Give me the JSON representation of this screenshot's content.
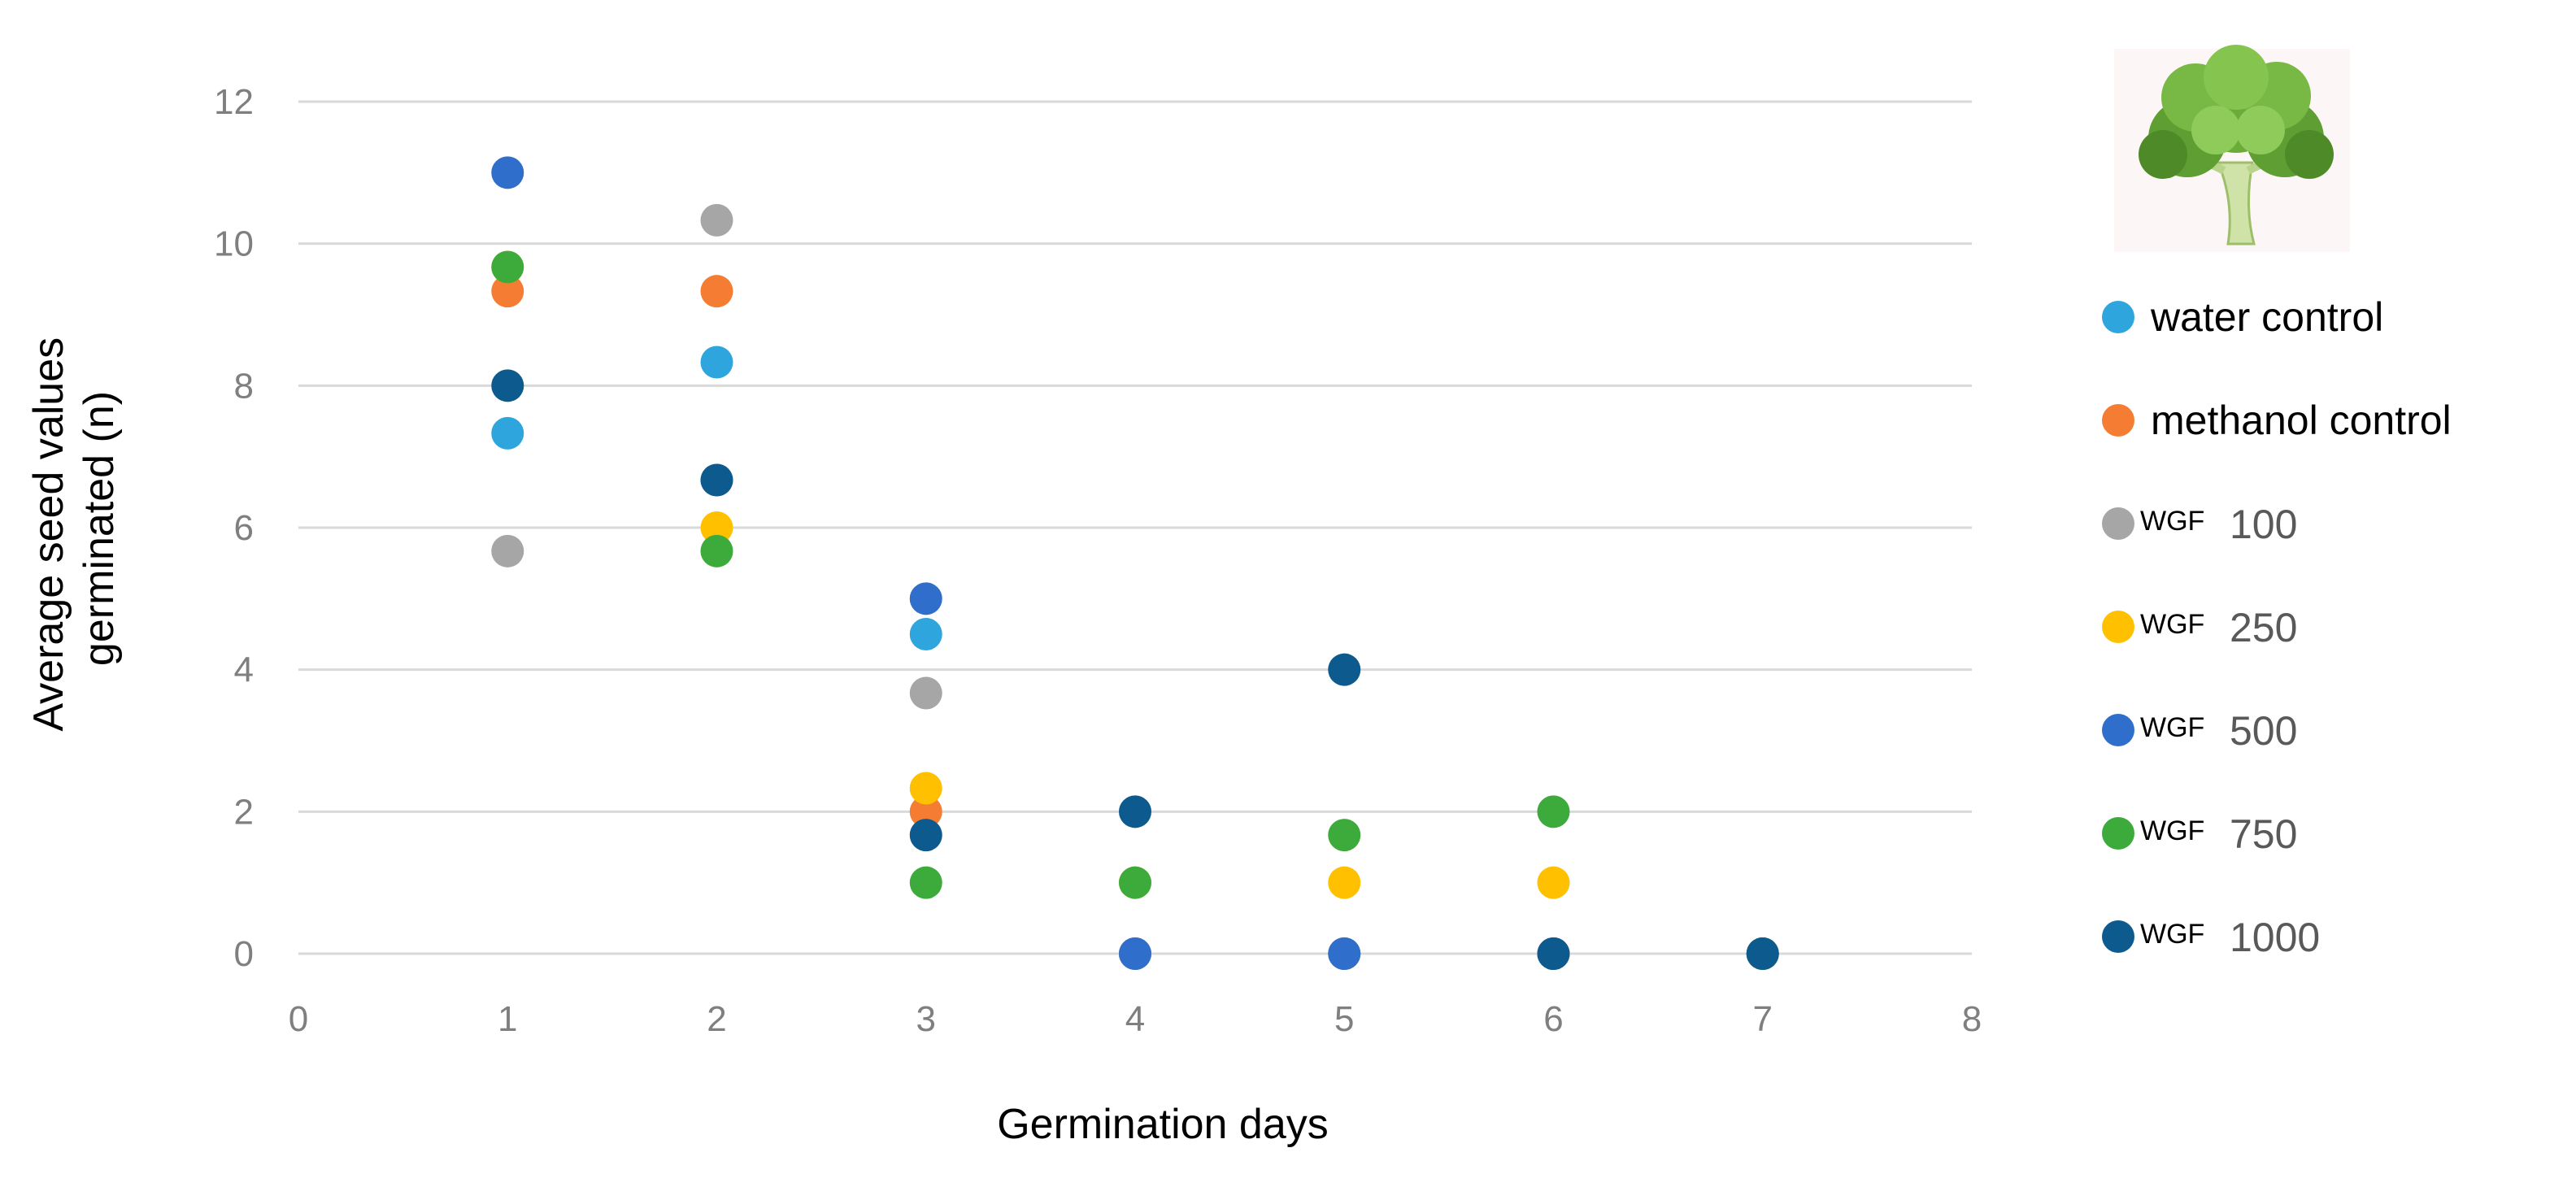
{
  "chart_data": {
    "type": "scatter",
    "xlabel": "Germination days",
    "ylabel_lines": [
      "Average seed values",
      "germinated (n)"
    ],
    "xlim": [
      0,
      8
    ],
    "ylim": [
      0,
      12
    ],
    "xticks": [
      0,
      1,
      2,
      3,
      4,
      5,
      6,
      7,
      8
    ],
    "yticks": [
      0,
      2,
      4,
      6,
      8,
      10,
      12
    ],
    "grid": "horizontal",
    "legend_placement": "right",
    "legend_image": "broccoli-icon",
    "series": [
      {
        "name": "water control",
        "prefix": "",
        "label": "water control",
        "color": "#2ea6dd",
        "points": [
          [
            1,
            7.33
          ],
          [
            2,
            8.33
          ],
          [
            3,
            4.5
          ],
          [
            4,
            0
          ],
          [
            5,
            0
          ],
          [
            6,
            0
          ],
          [
            7,
            0
          ]
        ]
      },
      {
        "name": "methanol control",
        "prefix": "",
        "label": "methanol control",
        "color": "#f57d33",
        "points": [
          [
            1,
            9.33
          ],
          [
            2,
            9.33
          ],
          [
            3,
            2
          ],
          [
            4,
            0
          ],
          [
            5,
            0
          ],
          [
            6,
            0
          ],
          [
            7,
            0
          ]
        ]
      },
      {
        "name": "WGF 100",
        "prefix": "WGF",
        "label": "100",
        "color": "#a6a6a6",
        "points": [
          [
            1,
            5.67
          ],
          [
            2,
            10.33
          ],
          [
            3,
            3.67
          ],
          [
            4,
            0
          ],
          [
            5,
            0
          ],
          [
            6,
            0
          ],
          [
            7,
            0
          ]
        ]
      },
      {
        "name": "WGF 250",
        "prefix": "WGF",
        "label": "250",
        "color": "#ffc000",
        "points": [
          [
            1,
            9.67
          ],
          [
            2,
            6
          ],
          [
            3,
            2.33
          ],
          [
            4,
            1
          ],
          [
            5,
            1
          ],
          [
            6,
            1
          ],
          [
            7,
            0
          ]
        ]
      },
      {
        "name": "WGF 500",
        "prefix": "WGF",
        "label": "500",
        "color": "#2f6fcb",
        "points": [
          [
            1,
            11
          ],
          [
            2,
            6.67
          ],
          [
            3,
            5
          ],
          [
            4,
            0
          ],
          [
            5,
            0
          ],
          [
            6,
            0
          ],
          [
            7,
            0
          ]
        ]
      },
      {
        "name": "WGF 750",
        "prefix": "WGF",
        "label": "750",
        "color": "#3cab3c",
        "points": [
          [
            1,
            9.67
          ],
          [
            2,
            5.67
          ],
          [
            3,
            1
          ],
          [
            4,
            1
          ],
          [
            5,
            1.67
          ],
          [
            6,
            2
          ],
          [
            7,
            0
          ]
        ]
      },
      {
        "name": "WGF 1000",
        "prefix": "WGF",
        "label": "1000",
        "color": "#0d5a8e",
        "points": [
          [
            1,
            8
          ],
          [
            2,
            6.67
          ],
          [
            3,
            1.67
          ],
          [
            4,
            2
          ],
          [
            5,
            4
          ],
          [
            6,
            0
          ],
          [
            7,
            0
          ]
        ]
      }
    ]
  }
}
